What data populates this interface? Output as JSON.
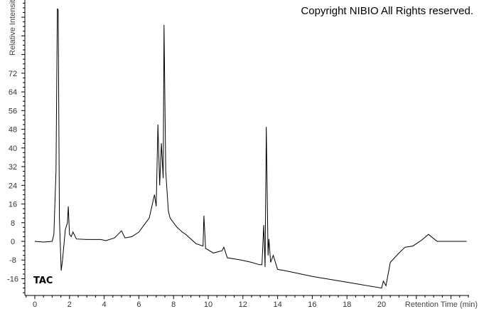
{
  "chart_data": {
    "type": "line",
    "title": "",
    "copyright": "Copyright NIBIO All Rights reserved.",
    "trace_label": "TAC",
    "xlabel": "Retention Time (min)",
    "ylabel": "Relative Intensity",
    "xlim": [
      0,
      25
    ],
    "ylim": [
      -23,
      103
    ],
    "xticks": [
      0,
      2,
      4,
      6,
      8,
      10,
      12,
      14,
      16,
      18,
      20
    ],
    "yticks": [
      -16,
      -8,
      0,
      8,
      16,
      24,
      32,
      40,
      48,
      56,
      64,
      72
    ],
    "grid": false,
    "line_color": "#000000",
    "series": [
      {
        "x": [
          0,
          0.5,
          1.0,
          1.1,
          1.22,
          1.3,
          1.35,
          1.42,
          1.52,
          1.6,
          1.76,
          1.88,
          1.93,
          2.0,
          2.1,
          2.2,
          2.4,
          3.0,
          3.8,
          4.1,
          4.6,
          5.0,
          5.2,
          5.6,
          6.0,
          6.2,
          6.6,
          6.9,
          7.0,
          7.1,
          7.2,
          7.3,
          7.4,
          7.45,
          7.55,
          7.7,
          7.8,
          8.0,
          8.2,
          8.5,
          8.7,
          9.0,
          9.3,
          9.7,
          9.75,
          9.85,
          10.3,
          10.8,
          10.9,
          11.1,
          11.9,
          12.5,
          12.95,
          13.1,
          13.2,
          13.28,
          13.35,
          13.45,
          13.5,
          13.6,
          13.75,
          14.0,
          14.4,
          16.0,
          18.0,
          20.0,
          20.1,
          20.25,
          20.5,
          21.0,
          21.35,
          21.8,
          22.3,
          22.7,
          23.2,
          24.9
        ],
        "y": [
          0,
          -0.3,
          0,
          3,
          30,
          99.7,
          99,
          10,
          -12.5,
          -8,
          5,
          8,
          15,
          3,
          2,
          4,
          1,
          0.8,
          0.8,
          0.3,
          1.5,
          4.5,
          1.5,
          2,
          4,
          6,
          10,
          20,
          15,
          50,
          24,
          42,
          27,
          92.7,
          30,
          13,
          10,
          8,
          6,
          4,
          3,
          1,
          -1,
          -2,
          11,
          -3,
          -5,
          -4,
          -2.5,
          -7,
          -8,
          -9,
          -10,
          -10,
          7,
          -11,
          49,
          -6,
          1,
          -9,
          -6,
          -12,
          -12.5,
          -15,
          -17.5,
          -20,
          -17,
          -19,
          -9,
          -5,
          -2.5,
          -2,
          0.5,
          3,
          0,
          0
        ]
      }
    ]
  }
}
